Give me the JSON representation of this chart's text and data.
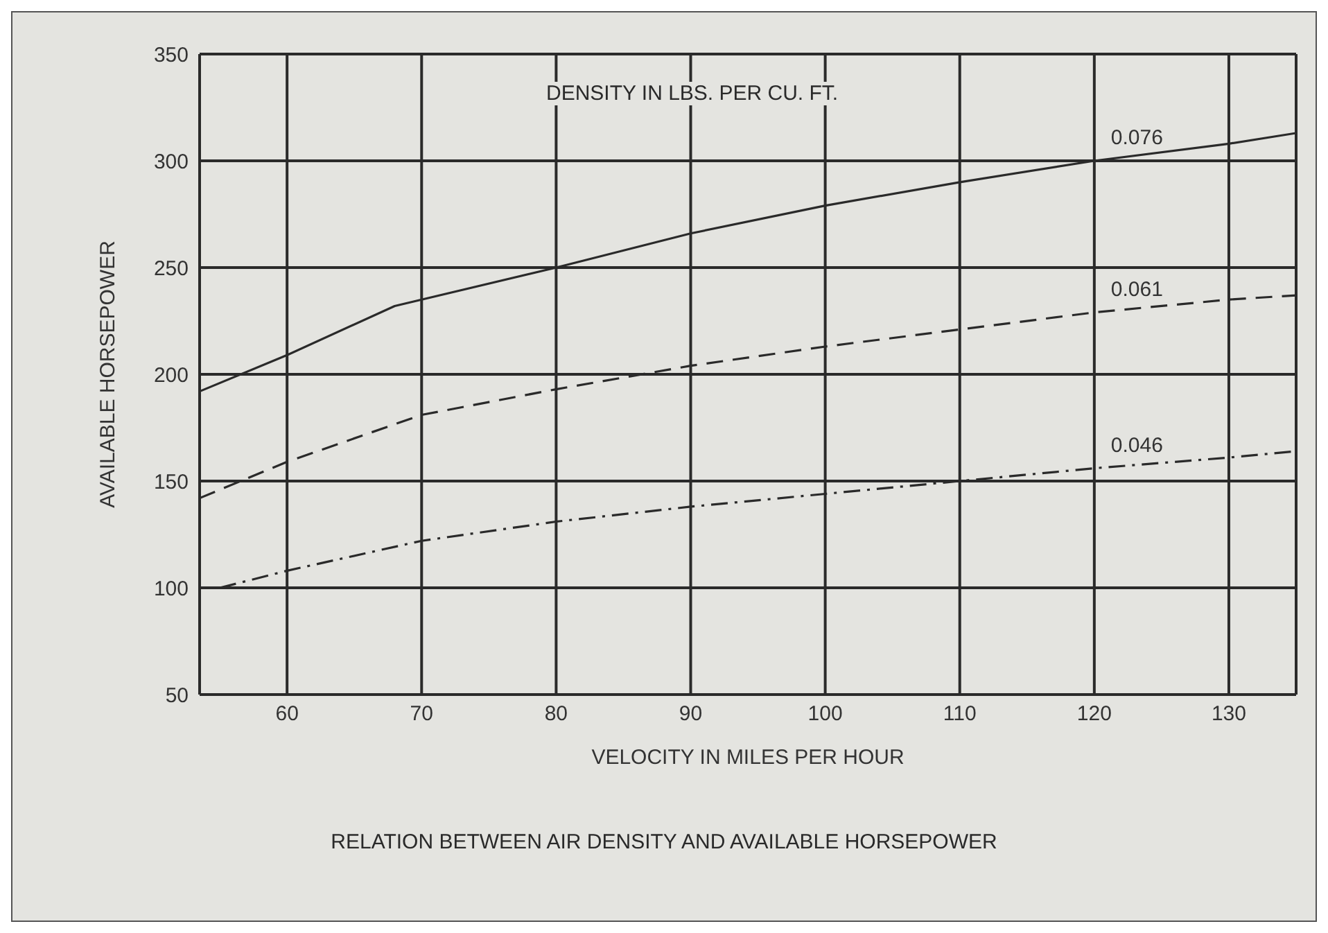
{
  "chart_data": {
    "type": "line",
    "xlabel": "VELOCITY IN MILES PER HOUR",
    "ylabel": "AVAILABLE HORSEPOWER",
    "annotations": [
      "DENSITY IN LBS. PER CU. FT.",
      "RELATION BETWEEN AIR DENSITY AND AVAILABLE HORSEPOWER"
    ],
    "series": [
      {
        "name": "0.076",
        "color": "#2a2a2a",
        "line_style": "solid",
        "x": [
          53.5,
          60,
          68,
          80,
          90,
          100,
          110,
          120,
          130,
          135
        ],
        "values": [
          192,
          209,
          232,
          250,
          266,
          279,
          290,
          300,
          308,
          313
        ]
      },
      {
        "name": "0.061",
        "color": "#2a2a2a",
        "line_style": "dashed",
        "x": [
          53.5,
          60,
          70,
          80,
          90,
          100,
          110,
          120,
          130,
          135
        ],
        "values": [
          142,
          159,
          181,
          193,
          204,
          213,
          221,
          229,
          235,
          237
        ]
      },
      {
        "name": "0.046",
        "color": "#2a2a2a",
        "line_style": "dashdot",
        "x": [
          55,
          60,
          70,
          80,
          90,
          100,
          110,
          120,
          130,
          135
        ],
        "values": [
          100,
          108,
          122,
          131,
          138,
          144,
          150,
          156,
          161,
          164
        ]
      }
    ],
    "xlim": [
      53.5,
      135
    ],
    "xticks": [
      60,
      70,
      80,
      90,
      100,
      110,
      120,
      130
    ],
    "ylim": [
      50,
      350
    ],
    "yticks": [
      50,
      100,
      150,
      200,
      250,
      300,
      350
    ],
    "grid": true,
    "marker": "none"
  }
}
